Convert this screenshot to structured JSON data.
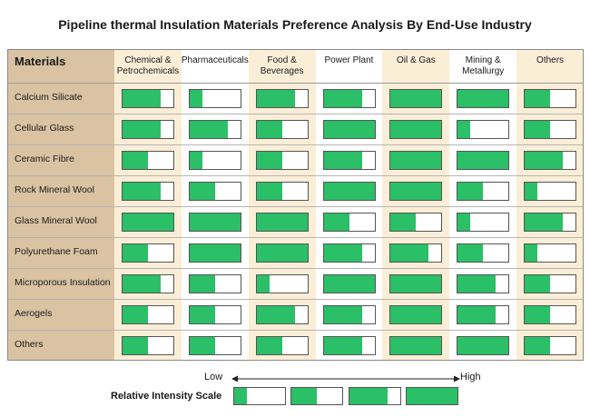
{
  "chart_data": {
    "type": "table",
    "title": "Pipeline thermal Insulation Materials Preference Analysis By End-Use Industry",
    "row_header": "Materials",
    "columns": [
      "Chemical & Petrochemicals",
      "Pharmaceuticals",
      "Food & Beverages",
      "Power Plant",
      "Oil & Gas",
      "Mining & Metallurgy",
      "Others"
    ],
    "rows": [
      {
        "material": "Calcium Silicate",
        "values": [
          0.75,
          0.25,
          0.75,
          0.75,
          1.0,
          1.0,
          0.5
        ]
      },
      {
        "material": "Cellular Glass",
        "values": [
          0.75,
          0.75,
          0.5,
          1.0,
          1.0,
          0.25,
          0.5
        ]
      },
      {
        "material": "Ceramic Fibre",
        "values": [
          0.5,
          0.25,
          0.5,
          0.75,
          1.0,
          1.0,
          0.75
        ]
      },
      {
        "material": "Rock Mineral Wool",
        "values": [
          0.75,
          0.5,
          0.5,
          1.0,
          1.0,
          0.5,
          0.25
        ]
      },
      {
        "material": "Glass Mineral Wool",
        "values": [
          1.0,
          1.0,
          1.0,
          0.5,
          0.5,
          0.25,
          0.75
        ]
      },
      {
        "material": "Polyurethane Foam",
        "values": [
          0.5,
          1.0,
          1.0,
          0.75,
          0.75,
          0.5,
          0.25
        ]
      },
      {
        "material": "Microporous Insulation",
        "values": [
          0.75,
          0.5,
          0.25,
          1.0,
          1.0,
          0.75,
          0.5
        ]
      },
      {
        "material": "Aerogels",
        "values": [
          0.5,
          0.5,
          0.75,
          0.75,
          1.0,
          0.75,
          0.5
        ]
      },
      {
        "material": "Others",
        "values": [
          0.5,
          0.5,
          0.5,
          0.75,
          1.0,
          1.0,
          0.5
        ]
      }
    ],
    "scale": {
      "label": "Relative Intensity Scale",
      "low": "Low",
      "high": "High",
      "levels": [
        0.25,
        0.5,
        0.75,
        1.0
      ]
    },
    "colors": {
      "fill": "#2bbf67",
      "label_col": "#d9c3a2",
      "cream": "#fbeed6",
      "row_line": "#b5b5b5"
    }
  }
}
